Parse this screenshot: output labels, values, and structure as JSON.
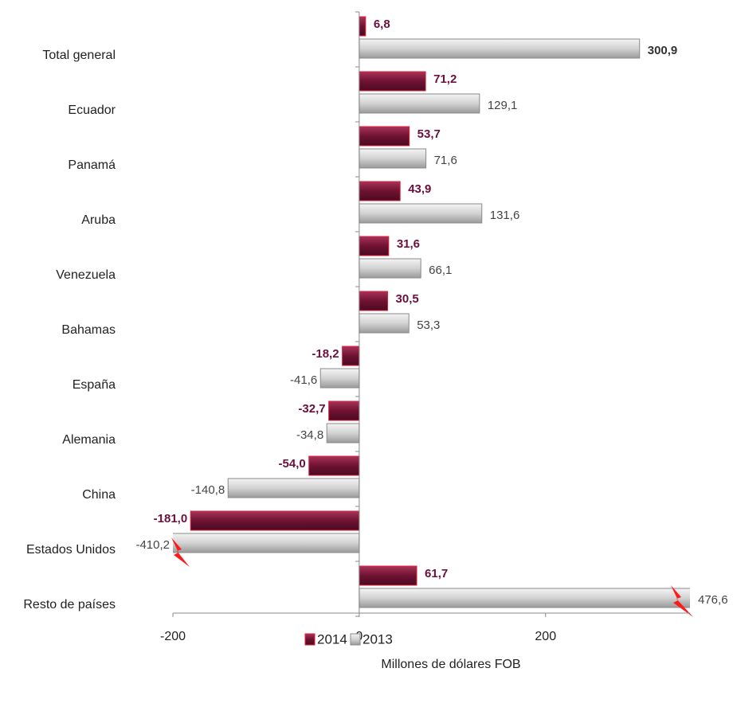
{
  "chart_data": {
    "type": "hbar",
    "categories": [
      "Total general",
      "Ecuador",
      "Panamá",
      "Aruba",
      "Venezuela",
      "Bahamas",
      "España",
      "Alemania",
      "China",
      "Estados Unidos",
      "Resto de países"
    ],
    "series": [
      {
        "name": "2014",
        "color": "#7a1a3c",
        "values": [
          6.8,
          71.2,
          53.7,
          43.9,
          31.6,
          30.5,
          -18.2,
          -32.7,
          -54.0,
          -181.0,
          61.7
        ],
        "value_labels": [
          "6,8",
          "71,2",
          "53,7",
          "43,9",
          "31,6",
          "30,5",
          "-18,2",
          "-32,7",
          "-54,0",
          "-181,0",
          "61,7"
        ]
      },
      {
        "name": "2013",
        "color": "#cfcfcf",
        "values": [
          300.9,
          129.1,
          71.6,
          131.6,
          66.1,
          53.3,
          -41.6,
          -34.8,
          -140.8,
          -410.2,
          476.6
        ],
        "value_labels": [
          "300,9",
          "129,1",
          "71,6",
          "131,6",
          "66,1",
          "53,3",
          "-41,6",
          "-34,8",
          "-140,8",
          "-410,2",
          "476,6"
        ]
      }
    ],
    "x_label": "Millones de dólares FOB",
    "xlim": [
      -200,
      355
    ],
    "xticks": [
      -200,
      0,
      200
    ],
    "legend": "bottom"
  }
}
